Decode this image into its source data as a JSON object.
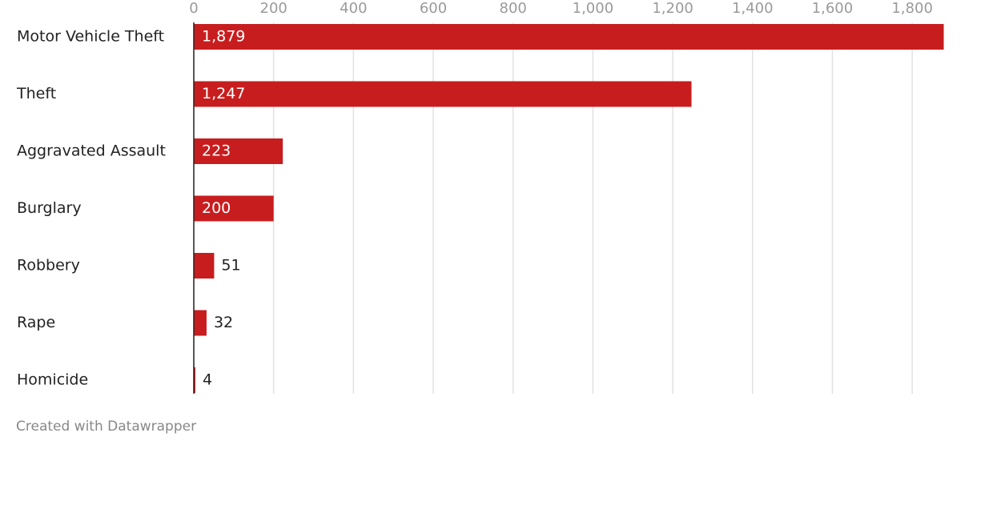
{
  "chart_data": {
    "type": "barh",
    "categories": [
      "Motor Vehicle Theft",
      "Theft",
      "Aggravated Assault",
      "Burglary",
      "Robbery",
      "Rape",
      "Homicide"
    ],
    "values": [
      1879,
      1247,
      223,
      200,
      51,
      32,
      4
    ],
    "value_labels": [
      "1,879",
      "1,247",
      "223",
      "200",
      "51",
      "32",
      "4"
    ],
    "color": "#c81d1e",
    "xlim": [
      0,
      1880
    ],
    "xticks": [
      0,
      200,
      400,
      600,
      800,
      {
        "value": 1000,
        "label": "1,000"
      },
      {
        "value": 1200,
        "label": "1,200"
      },
      {
        "value": 1400,
        "label": "1,400"
      },
      {
        "value": 1600,
        "label": "1,600"
      },
      {
        "value": 1800,
        "label": "1,800"
      }
    ],
    "grid": true,
    "credit": "Created with Datawrapper"
  }
}
